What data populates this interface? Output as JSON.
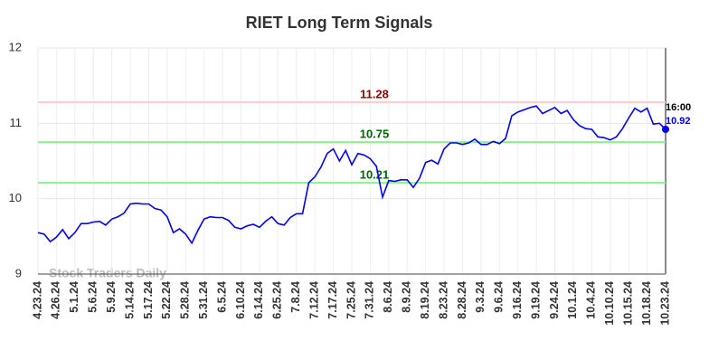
{
  "chart_data": {
    "type": "line",
    "title": "RIET Long Term Signals",
    "watermark": "Stock Traders Daily",
    "categories": [
      "4.23.24",
      null,
      null,
      "4.26.24",
      null,
      null,
      "5.1.24",
      null,
      null,
      "5.6.24",
      null,
      null,
      "5.9.24",
      null,
      null,
      "5.14.24",
      null,
      null,
      "5.17.24",
      null,
      null,
      "5.22.24",
      null,
      null,
      "5.28.24",
      null,
      null,
      "5.31.24",
      null,
      null,
      "6.5.24",
      null,
      null,
      "6.10.24",
      null,
      null,
      "6.14.24",
      null,
      null,
      "6.25.24",
      null,
      null,
      "7.8.24",
      null,
      null,
      "7.12.24",
      null,
      null,
      "7.17.24",
      null,
      null,
      "7.25.24",
      null,
      null,
      "7.31.24",
      null,
      null,
      "8.6.24",
      null,
      null,
      "8.9.24",
      null,
      null,
      "8.19.24",
      null,
      null,
      "8.23.24",
      null,
      null,
      "8.28.24",
      null,
      null,
      "9.3.24",
      null,
      null,
      "9.6.24",
      null,
      null,
      "9.16.24",
      null,
      null,
      "9.19.24",
      null,
      null,
      "9.24.24",
      null,
      null,
      "10.1.24",
      null,
      null,
      "10.4.24",
      null,
      null,
      "10.10.24",
      null,
      null,
      "10.15.24",
      null,
      null,
      "10.18.24",
      null,
      null,
      "10.23.24"
    ],
    "series": [
      {
        "name": "RIET",
        "color": "#0000ee",
        "values": [
          9.55,
          9.53,
          9.43,
          9.49,
          9.59,
          9.47,
          9.55,
          9.67,
          9.67,
          9.69,
          9.7,
          9.65,
          9.73,
          9.76,
          9.81,
          9.93,
          9.94,
          9.93,
          9.93,
          9.87,
          9.85,
          9.76,
          9.55,
          9.6,
          9.53,
          9.41,
          9.58,
          9.73,
          9.76,
          9.75,
          9.75,
          9.71,
          9.62,
          9.6,
          9.64,
          9.66,
          9.62,
          9.7,
          9.76,
          9.67,
          9.65,
          9.75,
          9.8,
          9.8,
          10.21,
          10.29,
          10.42,
          10.6,
          10.66,
          10.5,
          10.64,
          10.45,
          10.6,
          10.58,
          10.53,
          10.43,
          10.02,
          10.24,
          10.23,
          10.25,
          10.25,
          10.15,
          10.27,
          10.48,
          10.51,
          10.46,
          10.66,
          10.74,
          10.74,
          10.72,
          10.74,
          10.79,
          10.72,
          10.72,
          10.76,
          10.73,
          10.8,
          11.1,
          11.15,
          11.18,
          11.21,
          11.23,
          11.13,
          11.17,
          11.21,
          11.13,
          11.17,
          11.05,
          10.97,
          10.93,
          10.92,
          10.82,
          10.81,
          10.78,
          10.82,
          10.93,
          11.07,
          11.2,
          11.15,
          11.2,
          10.99,
          11.0,
          10.92
        ]
      }
    ],
    "last_time_label": "16:00",
    "reference_lines": [
      {
        "value": 11.28,
        "color": "#ffcccc",
        "label_color": "#8b0000"
      },
      {
        "value": 10.75,
        "color": "#90ee90",
        "label_color": "#006400"
      },
      {
        "value": 10.21,
        "color": "#90ee90",
        "label_color": "#006400"
      }
    ],
    "ylim": [
      9,
      12
    ],
    "yticks": [
      9,
      10,
      11,
      12
    ],
    "grid": true
  }
}
